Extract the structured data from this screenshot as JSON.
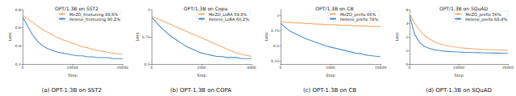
{
  "chart_data": [
    {
      "type": "line",
      "title": "OPT/1.3B on SST2",
      "caption": "(a) OPT-1.3B on SST2",
      "x_label": "Step",
      "y_label": "Loss",
      "x": [
        0,
        1000,
        2000,
        3000,
        4000,
        5000,
        6000,
        7000,
        8000,
        9000,
        10000,
        11000,
        12000,
        13000,
        14000,
        15000,
        16000,
        17000,
        18000,
        19000,
        20000
      ],
      "series": [
        {
          "name": "MeZO_finetuning 89.6%",
          "color": "#f6ae72",
          "values": [
            0.74,
            0.7,
            0.66,
            0.62,
            0.58,
            0.55,
            0.52,
            0.49,
            0.47,
            0.45,
            0.43,
            0.41,
            0.39,
            0.38,
            0.36,
            0.35,
            0.34,
            0.33,
            0.32,
            0.31,
            0.31
          ]
        },
        {
          "name": "Helene_finetuning 90.2%",
          "color": "#4f8fcc",
          "values": [
            0.72,
            0.62,
            0.52,
            0.45,
            0.4,
            0.37,
            0.35,
            0.33,
            0.32,
            0.31,
            0.3,
            0.29,
            0.29,
            0.28,
            0.28,
            0.27,
            0.27,
            0.27,
            0.26,
            0.26,
            0.26
          ]
        }
      ],
      "xlim": [
        0,
        20000
      ],
      "xticks": [
        0,
        10000,
        20000
      ],
      "ylim": [
        0.2,
        0.8
      ],
      "yticks": [
        0.2,
        0.4,
        0.6,
        0.8
      ],
      "grid": false,
      "legend": "upper right"
    },
    {
      "type": "line",
      "title": "OPT/1.3B on Copa",
      "caption": "(b) OPT-1.3B on COPA",
      "x_label": "Step",
      "y_label": "Loss",
      "x": [
        0,
        200,
        400,
        600,
        800,
        1000,
        1200,
        1400,
        1600,
        1800,
        2000,
        2200,
        2400,
        2600,
        2800,
        3000,
        3200,
        3400,
        3600,
        3800,
        4000
      ],
      "series": [
        {
          "name": "MeZO_LoRA 59.8%",
          "color": "#f6ae72",
          "values": [
            0.94,
            0.92,
            0.9,
            0.88,
            0.86,
            0.84,
            0.82,
            0.8,
            0.78,
            0.76,
            0.74,
            0.72,
            0.7,
            0.68,
            0.66,
            0.64,
            0.62,
            0.6,
            0.59,
            0.58,
            0.57
          ]
        },
        {
          "name": "Helene_LoRA 60.2%",
          "color": "#4f8fcc",
          "values": [
            0.93,
            0.88,
            0.83,
            0.79,
            0.75,
            0.72,
            0.69,
            0.66,
            0.64,
            0.62,
            0.6,
            0.59,
            0.58,
            0.57,
            0.57,
            0.56,
            0.56,
            0.56,
            0.55,
            0.55,
            0.55
          ]
        }
      ],
      "xlim": [
        0,
        4000
      ],
      "xticks": [
        0,
        2000,
        4000
      ],
      "ylim": [
        0.5,
        1
      ],
      "yticks": [
        0.5,
        0.75,
        1
      ],
      "grid": false,
      "legend": "upper right"
    },
    {
      "type": "line",
      "title": "OPT/1.3B on CB",
      "caption": "(c) OPT-1.3B on CB",
      "x_label": "Step",
      "y_label": "Loss",
      "x": [
        0,
        500,
        1000,
        1500,
        2000,
        2500,
        3000,
        3500,
        4000,
        4500,
        5000,
        5500,
        6000,
        6500,
        7000,
        7500,
        8000,
        8500,
        9000,
        9500,
        10000
      ],
      "series": [
        {
          "name": "MeZO_prefix 66%",
          "color": "#f6ae72",
          "values": [
            0.9,
            0.89,
            0.89,
            0.88,
            0.88,
            0.87,
            0.87,
            0.86,
            0.86,
            0.85,
            0.85,
            0.85,
            0.84,
            0.84,
            0.84,
            0.83,
            0.83,
            0.83,
            0.82,
            0.82,
            0.82
          ]
        },
        {
          "name": "Helene_prefix 74%",
          "color": "#4f8fcc",
          "values": [
            0.88,
            0.8,
            0.74,
            0.7,
            0.66,
            0.62,
            0.59,
            0.56,
            0.53,
            0.5,
            0.48,
            0.46,
            0.44,
            0.42,
            0.4,
            0.38,
            0.37,
            0.35,
            0.34,
            0.33,
            0.32
          ]
        }
      ],
      "xlim": [
        0,
        10000
      ],
      "xticks": [
        0,
        5000,
        10000
      ],
      "ylim": [
        0.2,
        1.1
      ],
      "yticks": [
        0.25,
        0.5,
        0.75,
        1
      ],
      "grid": false,
      "legend": "upper right"
    },
    {
      "type": "line",
      "title": "OPT/1.3B on SQuAD",
      "caption": "(d) OPT-1.3B on SQuAD",
      "x_label": "Step",
      "y_label": "Loss",
      "x": [
        0,
        1000,
        2000,
        3000,
        4000,
        5000,
        6000,
        7000,
        8000,
        9000,
        10000,
        11000,
        12000,
        13000,
        14000,
        15000,
        16000,
        17000,
        18000,
        19000,
        20000
      ],
      "series": [
        {
          "name": "MeZO_prefix 56%",
          "color": "#f6ae72",
          "values": [
            3.7,
            3.0,
            2.5,
            2.1,
            1.85,
            1.65,
            1.5,
            1.4,
            1.32,
            1.26,
            1.21,
            1.17,
            1.14,
            1.11,
            1.09,
            1.07,
            1.05,
            1.04,
            1.03,
            1.02,
            1.01
          ]
        },
        {
          "name": "Helene_prefix 68.4%",
          "color": "#4f8fcc",
          "values": [
            3.6,
            2.2,
            1.6,
            1.3,
            1.15,
            1.05,
            1.0,
            0.95,
            0.92,
            0.9,
            0.88,
            0.86,
            0.85,
            0.84,
            0.83,
            0.82,
            0.81,
            0.8,
            0.8,
            0.79,
            0.79
          ]
        }
      ],
      "xlim": [
        0,
        20000
      ],
      "xticks": [
        0,
        10000,
        20000
      ],
      "ylim": [
        0,
        4
      ],
      "yticks": [
        0,
        1,
        2,
        3,
        4
      ],
      "grid": false,
      "legend": "upper right"
    }
  ]
}
